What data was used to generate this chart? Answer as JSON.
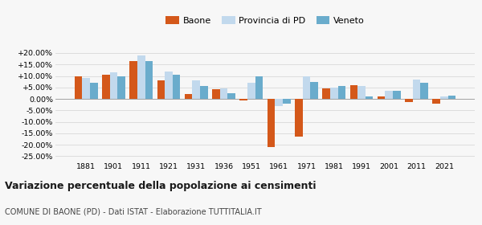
{
  "years": [
    1881,
    1901,
    1911,
    1921,
    1931,
    1936,
    1951,
    1961,
    1971,
    1981,
    1991,
    2001,
    2011,
    2021
  ],
  "baone": [
    10.0,
    10.5,
    16.5,
    8.0,
    2.0,
    4.2,
    -0.8,
    -21.0,
    -16.5,
    4.5,
    6.0,
    1.0,
    -1.5,
    -2.0
  ],
  "provincia_pd": [
    9.0,
    11.5,
    19.0,
    12.0,
    8.0,
    4.5,
    7.0,
    -3.0,
    10.0,
    5.0,
    5.5,
    3.5,
    8.5,
    1.2
  ],
  "veneto": [
    7.0,
    10.0,
    16.5,
    10.5,
    5.5,
    2.5,
    10.0,
    -2.0,
    7.5,
    5.5,
    1.0,
    3.5,
    7.0,
    1.5
  ],
  "baone_color": "#d4581a",
  "provincia_color": "#c2d9ed",
  "veneto_color": "#6aaccc",
  "title_main": "Variazione percentuale della popolazione ai censimenti",
  "title_sub": "COMUNE DI BAONE (PD) - Dati ISTAT - Elaborazione TUTTITALIA.IT",
  "yticks": [
    -25,
    -20,
    -15,
    -10,
    -5,
    0,
    5,
    10,
    15,
    20
  ],
  "ylim": [
    -27,
    23
  ],
  "legend_labels": [
    "Baone",
    "Provincia di PD",
    "Veneto"
  ],
  "bg_color": "#f7f7f7",
  "grid_color": "#d8d8d8"
}
